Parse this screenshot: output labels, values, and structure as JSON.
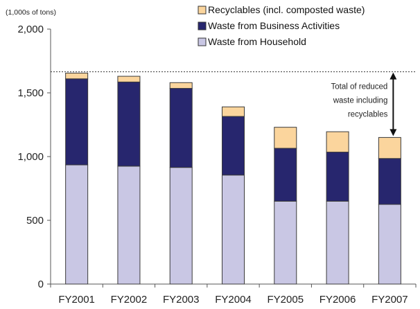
{
  "chart_data": {
    "type": "bar",
    "stacked": true,
    "unit_label": "(1,000s of tons)",
    "title": "",
    "xlabel": "",
    "ylabel": "",
    "ylim": [
      0,
      2000
    ],
    "yticks": [
      0,
      500,
      1000,
      1500,
      2000
    ],
    "ytick_labels": [
      "0",
      "500",
      "1,000",
      "1,500",
      "2,000"
    ],
    "categories": [
      "FY2001",
      "FY2002",
      "FY2003",
      "FY2004",
      "FY2005",
      "FY2006",
      "FY2007"
    ],
    "series": [
      {
        "name": "Waste from Household",
        "color": "#c9c7e4",
        "values": [
          935,
          925,
          915,
          855,
          650,
          650,
          625
        ]
      },
      {
        "name": "Waste from Business Activities",
        "color": "#27266e",
        "values": [
          675,
          660,
          620,
          460,
          415,
          385,
          360
        ]
      },
      {
        "name": "Recyclables (incl. composted waste)",
        "color": "#fbd59d",
        "values": [
          45,
          45,
          45,
          75,
          165,
          160,
          165
        ]
      }
    ],
    "legend_placement": "top",
    "legend_order": [
      "Recyclables (incl. composted waste)",
      "Waste from Business Activities",
      "Waste from Household"
    ],
    "reference_line": {
      "value": 1665,
      "style": "dotted"
    },
    "annotation": {
      "lines": [
        "Total of reduced",
        "waste including",
        "recyclables"
      ],
      "arrow": "double-headed between the reference line and the FY2007 total"
    },
    "grid": false
  }
}
